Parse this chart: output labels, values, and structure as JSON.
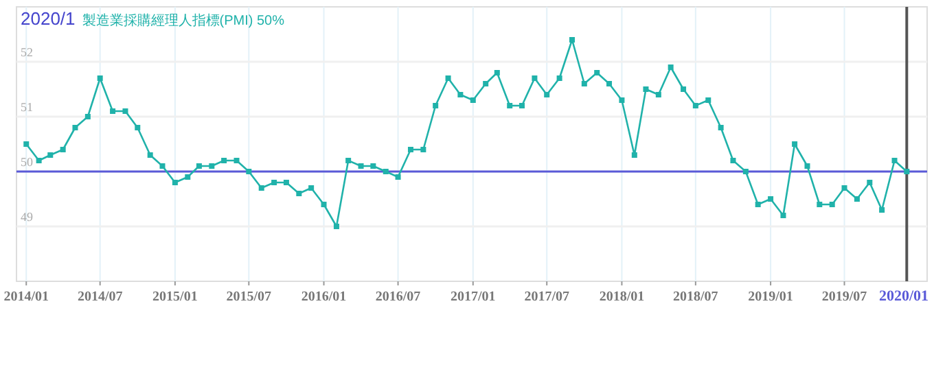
{
  "chart_data": {
    "type": "line",
    "title": "2020/1",
    "subtitle": "製造業採購經理人指標(PMI) 50%",
    "x": [
      "2014-01",
      "2014-02",
      "2014-03",
      "2014-04",
      "2014-05",
      "2014-06",
      "2014-07",
      "2014-08",
      "2014-09",
      "2014-10",
      "2014-11",
      "2014-12",
      "2015-01",
      "2015-02",
      "2015-03",
      "2015-04",
      "2015-05",
      "2015-06",
      "2015-07",
      "2015-08",
      "2015-09",
      "2015-10",
      "2015-11",
      "2015-12",
      "2016-01",
      "2016-02",
      "2016-03",
      "2016-04",
      "2016-05",
      "2016-06",
      "2016-07",
      "2016-08",
      "2016-09",
      "2016-10",
      "2016-11",
      "2016-12",
      "2017-01",
      "2017-02",
      "2017-03",
      "2017-04",
      "2017-05",
      "2017-06",
      "2017-07",
      "2017-08",
      "2017-09",
      "2017-10",
      "2017-11",
      "2017-12",
      "2018-01",
      "2018-02",
      "2018-03",
      "2018-04",
      "2018-05",
      "2018-06",
      "2018-07",
      "2018-08",
      "2018-09",
      "2018-10",
      "2018-11",
      "2018-12",
      "2019-01",
      "2019-02",
      "2019-03",
      "2019-04",
      "2019-05",
      "2019-06",
      "2019-07",
      "2019-08",
      "2019-09",
      "2019-10",
      "2019-11",
      "2019-12"
    ],
    "series": [
      {
        "color": "#20b2aa",
        "values": [
          50.5,
          50.2,
          50.3,
          50.4,
          50.8,
          51.0,
          51.7,
          51.1,
          51.1,
          50.8,
          50.3,
          50.1,
          49.8,
          49.9,
          50.1,
          50.1,
          50.2,
          50.2,
          50.0,
          49.7,
          49.8,
          49.8,
          49.6,
          49.7,
          49.4,
          49.0,
          50.2,
          50.1,
          50.1,
          50.0,
          49.9,
          50.4,
          50.4,
          51.2,
          51.7,
          51.4,
          51.3,
          51.6,
          51.8,
          51.2,
          51.2,
          51.7,
          51.4,
          51.7,
          52.4,
          51.6,
          51.8,
          51.6,
          51.3,
          50.3,
          51.5,
          51.4,
          51.9,
          51.5,
          51.2,
          51.3,
          50.8,
          50.2,
          50.0,
          49.4,
          49.5,
          49.2,
          50.5,
          50.1,
          49.4,
          49.4,
          49.7,
          49.5,
          49.8,
          49.3,
          50.2,
          50.0
        ]
      }
    ],
    "xlim": [
      "2013-12-08",
      "2020-01-20"
    ],
    "xticks": [
      {
        "value": "2014-01",
        "label": "2014/01"
      },
      {
        "value": "2014-07",
        "label": "2014/07"
      },
      {
        "value": "2015-01",
        "label": "2015/01"
      },
      {
        "value": "2015-07",
        "label": "2015/07"
      },
      {
        "value": "2016-01",
        "label": "2016/01"
      },
      {
        "value": "2016-07",
        "label": "2016/07"
      },
      {
        "value": "2017-01",
        "label": "2017/01"
      },
      {
        "value": "2017-07",
        "label": "2017/07"
      },
      {
        "value": "2018-01",
        "label": "2018/01"
      },
      {
        "value": "2018-07",
        "label": "2018/07"
      },
      {
        "value": "2019-01",
        "label": "2019/01"
      },
      {
        "value": "2019-07",
        "label": "2019/07"
      }
    ],
    "ylim": [
      48,
      53
    ],
    "yticks": [
      49,
      50,
      51,
      52
    ],
    "ref_lines": [
      {
        "axis": "y",
        "value": 50,
        "color": "#5a5ad8"
      },
      {
        "axis": "x",
        "value": "2019-12",
        "label": "2020/01",
        "color": "#555555"
      }
    ],
    "grid": true,
    "marker": "square",
    "line_style": "solid"
  }
}
